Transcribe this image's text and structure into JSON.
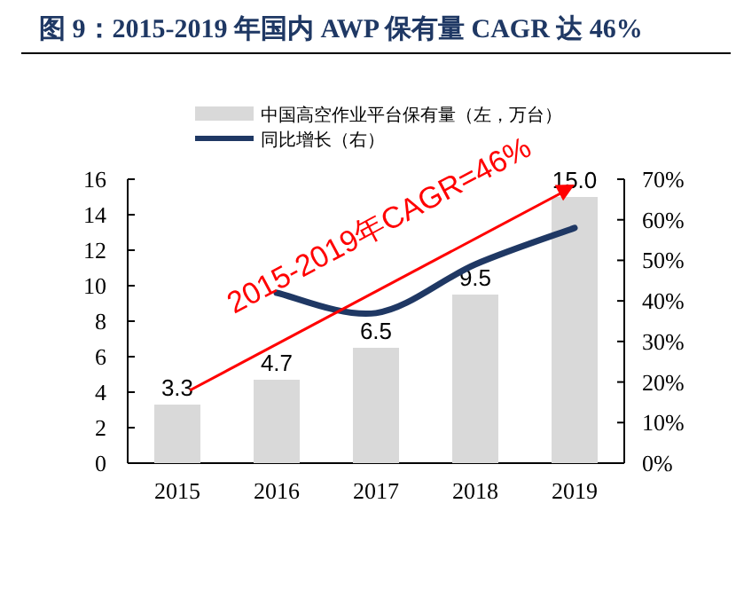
{
  "chart_data": {
    "type": "bar",
    "title": "图 9：2015-2019 年国内 AWP 保有量 CAGR 达 46%",
    "categories": [
      "2015",
      "2016",
      "2017",
      "2018",
      "2019"
    ],
    "series": [
      {
        "name": "中国高空作业平台保有量（左，万台）",
        "color": "#d9d9d9",
        "values": [
          3.3,
          4.7,
          6.5,
          9.5,
          15.0
        ],
        "value_labels": [
          "3.3",
          "4.7",
          "6.5",
          "9.5",
          "15.0"
        ]
      },
      {
        "name": "同比增长（右）",
        "type": "line",
        "axis": "y2",
        "color": "#1f3864",
        "values": [
          null,
          42,
          37,
          49,
          58
        ]
      }
    ],
    "ylim": [
      0,
      16
    ],
    "yticks": [
      0,
      2,
      4,
      6,
      8,
      10,
      12,
      14,
      16
    ],
    "y2lim": [
      0,
      70
    ],
    "y2ticks": [
      {
        "value": 0,
        "label": "0%"
      },
      {
        "value": 10,
        "label": "10%"
      },
      {
        "value": 20,
        "label": "20%"
      },
      {
        "value": 30,
        "label": "30%"
      },
      {
        "value": 40,
        "label": "40%"
      },
      {
        "value": 50,
        "label": "50%"
      },
      {
        "value": 60,
        "label": "60%"
      },
      {
        "value": 70,
        "label": "70%"
      }
    ],
    "annotations": [
      "2015-2019年CAGR=46%"
    ],
    "legend": "top",
    "grid": false
  }
}
